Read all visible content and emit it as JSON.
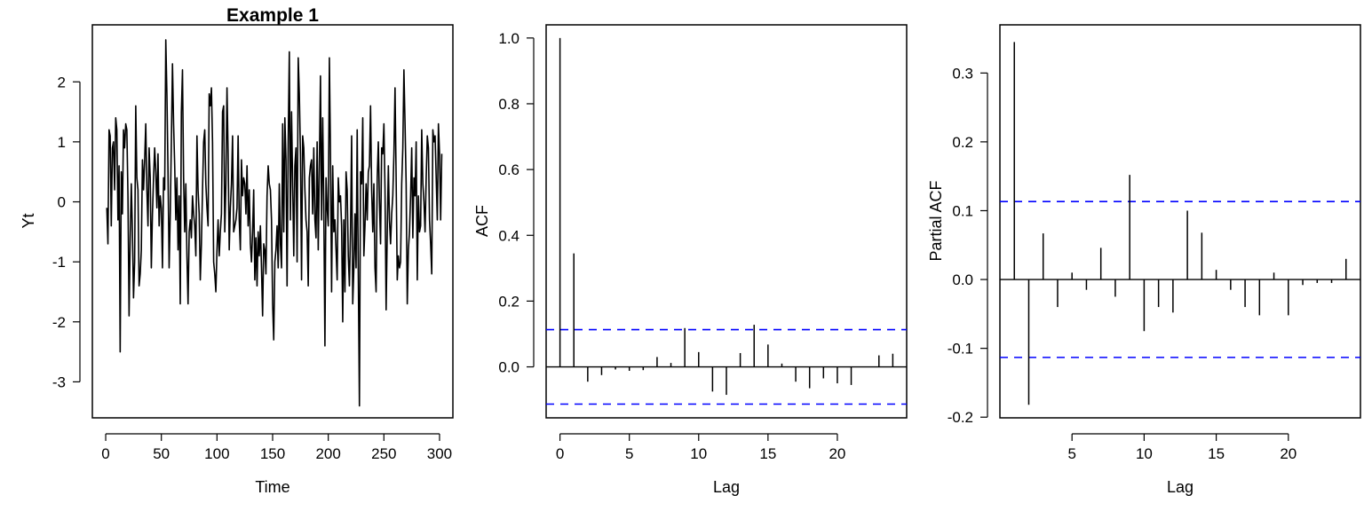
{
  "chart_data": [
    {
      "type": "line",
      "title": "Example 1",
      "xlabel": "Time",
      "ylabel": "Yt",
      "xlim": [
        -12,
        312
      ],
      "ylim": [
        -3.6,
        2.95
      ],
      "xticks": [
        0,
        50,
        100,
        150,
        200,
        250,
        300
      ],
      "xtick_labels": [
        "0",
        "50",
        "100",
        "150",
        "200",
        "250",
        "300"
      ],
      "yticks": [
        -3,
        -2,
        -1,
        0,
        1,
        2
      ],
      "ytick_labels": [
        "-3",
        "-2",
        "-1",
        "0",
        "1",
        "2"
      ],
      "color": "#000000",
      "x_start": 1,
      "x_step": 1,
      "values": [
        -0.1,
        -0.7,
        1.2,
        1.1,
        -0.4,
        0.9,
        1.0,
        0.2,
        1.4,
        1.2,
        -0.3,
        0.6,
        -2.5,
        0.5,
        -0.2,
        1.2,
        0.9,
        1.3,
        1.2,
        0.1,
        -1.9,
        -0.6,
        0.3,
        -0.5,
        -1.6,
        -1.0,
        1.6,
        0.4,
        0.2,
        -1.4,
        -1.2,
        -0.8,
        0.7,
        0.2,
        0.7,
        1.3,
        0.2,
        -0.4,
        0.9,
        0.4,
        -1.1,
        -0.2,
        0.4,
        0.9,
        0.5,
        -0.1,
        0.8,
        -0.4,
        0.1,
        -0.1,
        -1.1,
        0.4,
        0.2,
        2.7,
        1.8,
        0.5,
        -1.1,
        -0.2,
        1.0,
        2.3,
        1.3,
        0.6,
        -0.3,
        0.4,
        -0.8,
        0.1,
        -1.7,
        1.5,
        2.2,
        0.4,
        -0.5,
        0.3,
        -0.9,
        -1.7,
        -0.5,
        -0.3,
        -0.6,
        0.1,
        -0.2,
        -0.4,
        -0.9,
        1.1,
        0.2,
        -0.2,
        -1.3,
        -0.7,
        0.2,
        1.0,
        1.2,
        0.3,
        -0.1,
        -0.4,
        1.8,
        1.6,
        1.9,
        1.0,
        -1.0,
        -1.2,
        -1.5,
        -0.8,
        -0.3,
        -0.9,
        -0.5,
        -0.2,
        1.5,
        1.6,
        -0.5,
        0.3,
        1.9,
        0.8,
        -0.8,
        -0.1,
        0.3,
        1.1,
        -0.5,
        -0.4,
        -0.3,
        -0.1,
        1.1,
        -0.3,
        -0.8,
        0.7,
        0.1,
        0.4,
        0.3,
        -0.2,
        0.6,
        -0.4,
        0.2,
        -0.7,
        -1.0,
        -0.5,
        0.2,
        -1.3,
        -0.6,
        -1.4,
        -0.5,
        -0.9,
        -0.4,
        -1.1,
        -1.9,
        -0.7,
        -0.8,
        -1.2,
        0.1,
        0.6,
        0.3,
        0.2,
        -0.3,
        -1.7,
        -2.3,
        -1.0,
        -0.8,
        -0.4,
        -1.1,
        0.3,
        -0.7,
        -1.1,
        1.3,
        -0.5,
        1.4,
        0.7,
        -1.4,
        1.0,
        2.5,
        -0.3,
        1.5,
        0.3,
        -0.9,
        0.6,
        0.9,
        -1.0,
        2.4,
        1.8,
        0.8,
        -1.3,
        1.1,
        0.9,
        0.2,
        -0.3,
        -0.5,
        -1.4,
        0.4,
        0.6,
        0.7,
        -0.2,
        0.9,
        -0.3,
        -0.6,
        1.0,
        -0.8,
        0.6,
        2.1,
        -0.3,
        1.4,
        -0.1,
        -2.4,
        0.4,
        -0.1,
        -0.4,
        2.4,
        0.8,
        -1.5,
        0.6,
        -0.5,
        -0.3,
        -0.8,
        -1.3,
        0.4,
        0.0,
        0.1,
        -0.4,
        -2.0,
        -0.3,
        -1.5,
        0.5,
        0.2,
        -0.9,
        -1.4,
        -0.5,
        1.1,
        -1.7,
        -1.1,
        -0.2,
        -1.1,
        1.2,
        -1.2,
        -3.4,
        0.5,
        0.3,
        1.4,
        -0.9,
        -0.4,
        0.3,
        -0.3,
        0.5,
        0.6,
        1.6,
        0.2,
        -0.5,
        0.3,
        -1.1,
        -1.5,
        0.4,
        1.0,
        0.0,
        -0.7,
        0.9,
        0.8,
        1.3,
        0.2,
        -1.8,
        -0.5,
        0.6,
        -0.3,
        -0.7,
        -0.2,
        0.1,
        0.8,
        1.9,
        0.4,
        -1.3,
        -0.9,
        -1.1,
        -1.0,
        0.3,
        0.9,
        2.2,
        1.3,
        0.3,
        -1.7,
        -0.8,
        -0.5,
        0.1,
        0.9,
        -0.6,
        0.4,
        0.1,
        1.0,
        -1.3,
        0.1,
        -0.5,
        -0.4,
        1.2,
        0.3,
        0.0,
        -0.5,
        0.4,
        1.1,
        0.9,
        -0.3,
        -0.7,
        -1.2,
        1.2,
        1.0,
        1.1,
        0.4,
        -0.3,
        1.3,
        0.8,
        -0.3,
        0.8
      ]
    },
    {
      "type": "bar",
      "title": "",
      "xlabel": "Lag",
      "ylabel": "ACF",
      "xlim": [
        -1,
        25
      ],
      "ylim": [
        -0.155,
        1.04
      ],
      "xticks": [
        0,
        5,
        10,
        15,
        20
      ],
      "xtick_labels": [
        "0",
        "5",
        "10",
        "15",
        "20"
      ],
      "yticks": [
        0.0,
        0.2,
        0.4,
        0.6,
        0.8,
        1.0
      ],
      "ytick_labels": [
        "0.0",
        "0.2",
        "0.4",
        "0.6",
        "0.8",
        "1.0"
      ],
      "lags": [
        0,
        1,
        2,
        3,
        4,
        5,
        6,
        7,
        8,
        9,
        10,
        11,
        12,
        13,
        14,
        15,
        16,
        17,
        18,
        19,
        20,
        21,
        22,
        23,
        24
      ],
      "values": [
        1.0,
        0.345,
        -0.045,
        -0.025,
        -0.008,
        -0.012,
        -0.01,
        0.03,
        0.012,
        0.118,
        0.045,
        -0.075,
        -0.085,
        0.042,
        0.128,
        0.068,
        0.01,
        -0.045,
        -0.065,
        -0.035,
        -0.05,
        -0.055,
        0.0,
        0.035,
        0.04
      ],
      "conf_limit": 0.1132,
      "conf_color": "#0000ff",
      "color": "#000000"
    },
    {
      "type": "bar",
      "title": "",
      "xlabel": "Lag",
      "ylabel": "Partial ACF",
      "xlim": [
        0,
        25
      ],
      "ylim": [
        -0.201,
        0.37
      ],
      "xticks": [
        5,
        10,
        15,
        20
      ],
      "xtick_labels": [
        "5",
        "10",
        "15",
        "20"
      ],
      "yticks": [
        -0.2,
        -0.1,
        0.0,
        0.1,
        0.2,
        0.3
      ],
      "ytick_labels": [
        "-0.2",
        "-0.1",
        "0.0",
        "0.1",
        "0.2",
        "0.3"
      ],
      "lags": [
        1,
        2,
        3,
        4,
        5,
        6,
        7,
        8,
        9,
        10,
        11,
        12,
        13,
        14,
        15,
        16,
        17,
        18,
        19,
        20,
        21,
        22,
        23,
        24
      ],
      "values": [
        0.345,
        -0.182,
        0.067,
        -0.04,
        0.01,
        -0.015,
        0.046,
        -0.025,
        0.152,
        -0.075,
        -0.04,
        -0.048,
        0.1,
        0.068,
        0.014,
        -0.015,
        -0.04,
        -0.052,
        0.01,
        -0.052,
        -0.008,
        -0.005,
        -0.005,
        0.03
      ],
      "conf_limit": 0.1132,
      "conf_color": "#0000ff",
      "color": "#000000"
    }
  ]
}
